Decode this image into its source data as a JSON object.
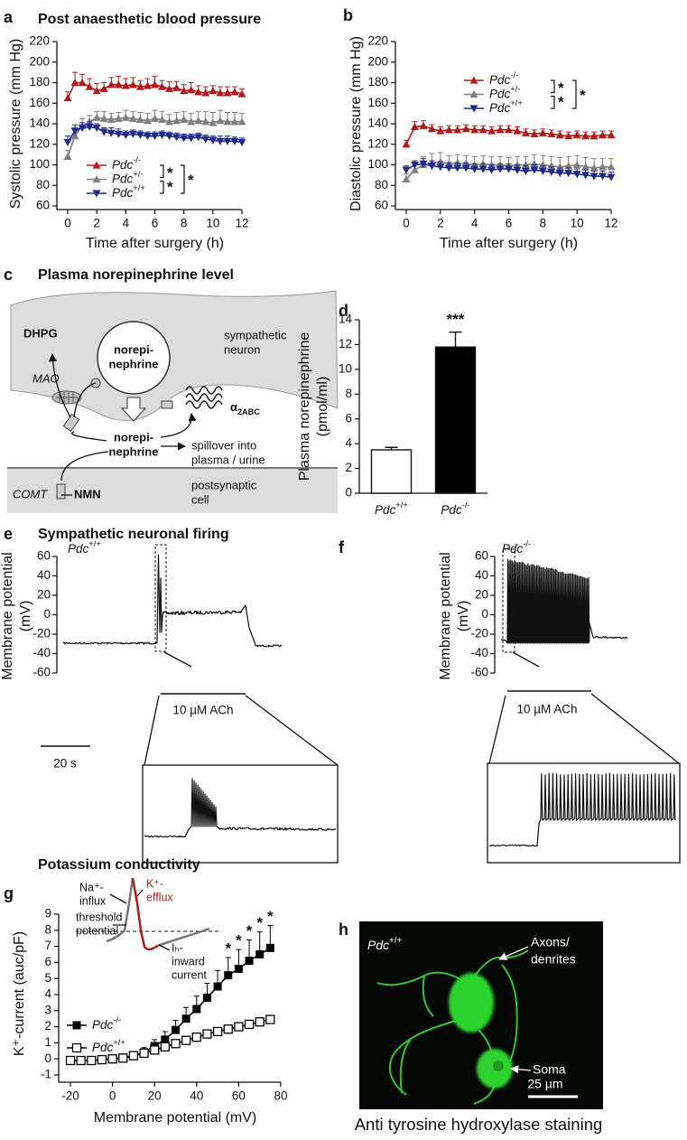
{
  "panel_labels": [
    "a",
    "b",
    "c",
    "d",
    "e",
    "f",
    "g",
    "h"
  ],
  "chart_data": [
    {
      "type": "line",
      "title": "Post anaesthetic blood pressure",
      "xlabel": "Time after surgery (h)",
      "ylabel": "Systolic pressure (mm Hg)",
      "x": [
        0,
        0.5,
        1,
        1.5,
        2,
        2.5,
        3,
        3.5,
        4,
        4.5,
        5,
        5.5,
        6,
        6.5,
        7,
        7.5,
        8,
        8.5,
        9,
        9.5,
        10,
        10.5,
        11,
        11.5,
        12
      ],
      "xlim": [
        0,
        12
      ],
      "xticks": [
        0,
        2,
        4,
        6,
        8,
        10,
        12
      ],
      "ylim": [
        60,
        220
      ],
      "yticks": [
        60,
        80,
        100,
        120,
        140,
        160,
        180,
        200,
        220
      ],
      "series": [
        {
          "name": "Pdc-/-",
          "color": "#b31b1b",
          "marker": "triangle-up",
          "values": [
            165,
            180,
            180,
            176,
            172,
            174,
            178,
            178,
            177,
            178,
            176,
            177,
            178,
            176,
            174,
            175,
            172,
            173,
            171,
            170,
            172,
            170,
            170,
            171,
            169
          ],
          "errors": [
            6,
            10,
            8,
            8,
            7,
            6,
            7,
            8,
            7,
            7,
            6,
            7,
            8,
            6,
            7,
            6,
            6,
            7,
            6,
            6,
            5,
            6,
            6,
            5,
            5
          ]
        },
        {
          "name": "Pdc+/-",
          "color": "#7f7f7f",
          "marker": "triangle-up",
          "values": [
            108,
            128,
            138,
            142,
            146,
            145,
            144,
            145,
            146,
            145,
            144,
            143,
            145,
            144,
            142,
            143,
            144,
            142,
            143,
            142,
            141,
            143,
            142,
            142,
            142
          ],
          "errors": [
            6,
            8,
            7,
            6,
            6,
            7,
            6,
            6,
            7,
            7,
            7,
            7,
            8,
            8,
            7,
            8,
            8,
            8,
            9,
            10,
            10,
            10,
            9,
            9,
            8
          ]
        },
        {
          "name": "Pdc+/+",
          "color": "#1f2a8c",
          "marker": "triangle-down",
          "values": [
            122,
            133,
            136,
            137,
            136,
            132,
            131,
            130,
            129,
            130,
            129,
            128,
            128,
            129,
            128,
            127,
            126,
            126,
            127,
            125,
            124,
            123,
            123,
            123,
            122
          ],
          "errors": [
            6,
            6,
            5,
            5,
            4,
            4,
            5,
            5,
            4,
            4,
            4,
            4,
            4,
            4,
            4,
            4,
            4,
            4,
            4,
            4,
            4,
            5,
            5,
            4,
            4
          ]
        }
      ],
      "significance": [
        "*",
        "*",
        "*"
      ]
    },
    {
      "type": "line",
      "xlabel": "Time after surgery (h)",
      "ylabel": "Diastolic pressure (mm Hg)",
      "x": [
        0,
        0.5,
        1,
        1.5,
        2,
        2.5,
        3,
        3.5,
        4,
        4.5,
        5,
        5.5,
        6,
        6.5,
        7,
        7.5,
        8,
        8.5,
        9,
        9.5,
        10,
        10.5,
        11,
        11.5,
        12
      ],
      "xlim": [
        0,
        12
      ],
      "xticks": [
        0,
        2,
        4,
        6,
        8,
        10,
        12
      ],
      "ylim": [
        60,
        220
      ],
      "yticks": [
        60,
        80,
        100,
        120,
        140,
        160,
        180,
        200,
        220
      ],
      "series": [
        {
          "name": "Pdc-/-",
          "color": "#b31b1b",
          "marker": "triangle-up",
          "values": [
            120,
            137,
            138,
            135,
            133,
            134,
            134,
            135,
            134,
            134,
            133,
            134,
            134,
            133,
            131,
            130,
            131,
            130,
            129,
            128,
            129,
            128,
            128,
            129,
            129
          ],
          "errors": [
            4,
            5,
            5,
            4,
            4,
            4,
            4,
            4,
            4,
            4,
            4,
            4,
            4,
            4,
            4,
            4,
            4,
            4,
            4,
            4,
            4,
            4,
            4,
            4,
            4
          ]
        },
        {
          "name": "Pdc+/-",
          "color": "#7f7f7f",
          "marker": "triangle-up",
          "values": [
            86,
            95,
            100,
            102,
            103,
            101,
            102,
            101,
            100,
            101,
            100,
            100,
            99,
            100,
            100,
            101,
            100,
            99,
            98,
            99,
            100,
            98,
            97,
            98,
            98
          ],
          "errors": [
            5,
            7,
            8,
            9,
            9,
            8,
            8,
            8,
            8,
            8,
            8,
            8,
            8,
            8,
            8,
            9,
            9,
            9,
            9,
            9,
            9,
            9,
            9,
            8,
            8
          ]
        },
        {
          "name": "Pdc+/+",
          "color": "#1f2a8c",
          "marker": "triangle-down",
          "values": [
            95,
            100,
            101,
            99,
            98,
            97,
            97,
            97,
            96,
            96,
            95,
            96,
            96,
            95,
            94,
            95,
            94,
            93,
            92,
            92,
            91,
            90,
            89,
            89,
            88
          ],
          "errors": [
            4,
            4,
            5,
            5,
            5,
            5,
            5,
            5,
            5,
            5,
            5,
            5,
            5,
            5,
            5,
            5,
            5,
            5,
            5,
            5,
            5,
            5,
            5,
            5,
            5
          ]
        }
      ],
      "significance": [
        "*",
        "*",
        "*"
      ]
    },
    {
      "type": "bar",
      "ylabel": [
        "Plasma norepinephrine",
        "(pmol/ml)"
      ],
      "categories": [
        "Pdc+/+",
        "Pdc-/-"
      ],
      "values": [
        3.5,
        11.8
      ],
      "errors": [
        0.2,
        1.2
      ],
      "colors": [
        "#ffffff",
        "#000000"
      ],
      "ylim": [
        0,
        14
      ],
      "yticks": [
        0,
        2,
        4,
        6,
        8,
        10,
        12,
        14
      ],
      "significance": "***"
    },
    {
      "type": "line",
      "title": "Potassium conductivity",
      "xlabel": "Membrane potential (mV)",
      "ylabel": "K⁺-current (auc/pF)",
      "x": [
        -20,
        -15,
        -10,
        -5,
        0,
        5,
        10,
        15,
        20,
        25,
        30,
        35,
        40,
        45,
        50,
        55,
        60,
        65,
        70,
        75
      ],
      "xlim": [
        -20,
        80
      ],
      "xticks": [
        -20,
        0,
        20,
        40,
        60,
        80
      ],
      "ylim": [
        -1,
        9
      ],
      "yticks": [
        -1,
        0,
        1,
        2,
        3,
        4,
        5,
        6,
        7,
        8,
        9
      ],
      "series": [
        {
          "name": "Pdc-/-",
          "color": "#000000",
          "marker": "square-filled",
          "values": [
            -0.1,
            -0.1,
            -0.1,
            -0.05,
            0,
            0.05,
            0.2,
            0.4,
            0.8,
            1.2,
            1.8,
            2.5,
            3.1,
            3.8,
            4.5,
            5.2,
            5.6,
            6.1,
            6.5,
            6.9
          ],
          "errors": [
            0.1,
            0.1,
            0.1,
            0.1,
            0.1,
            0.1,
            0.2,
            0.3,
            0.4,
            0.5,
            0.6,
            0.7,
            0.8,
            0.9,
            1.0,
            1.1,
            1.2,
            1.3,
            1.4,
            1.4
          ]
        },
        {
          "name": "Pdc+/+",
          "color": "#000000",
          "marker": "square-open",
          "values": [
            -0.1,
            -0.1,
            -0.1,
            -0.05,
            0,
            0.05,
            0.2,
            0.35,
            0.55,
            0.75,
            0.95,
            1.15,
            1.35,
            1.55,
            1.7,
            1.85,
            2.0,
            2.15,
            2.3,
            2.45
          ],
          "errors": [
            0.05,
            0.05,
            0.05,
            0.05,
            0.05,
            0.05,
            0.1,
            0.1,
            0.1,
            0.1,
            0.1,
            0.1,
            0.15,
            0.15,
            0.15,
            0.15,
            0.15,
            0.2,
            0.2,
            0.2
          ]
        }
      ],
      "annotations": [
        {
          "x": 55,
          "text": "*"
        },
        {
          "x": 60,
          "text": "*"
        },
        {
          "x": 65,
          "text": "*"
        },
        {
          "x": 70,
          "text": "*"
        },
        {
          "x": 75,
          "text": "*"
        }
      ],
      "inset": {
        "influx": [
          "Na⁺-",
          "influx"
        ],
        "efflux": [
          "K⁺-",
          "efflux"
        ],
        "threshold": [
          "threshold",
          "potential"
        ],
        "inward": [
          "Iₕ-",
          "inward",
          "current"
        ]
      }
    }
  ],
  "diagram": {
    "title": "Plasma norepinephrine level",
    "dhpg": "DHPG",
    "mao": "MAO",
    "vesicle": [
      "norepi-",
      "nephrine"
    ],
    "neuron": [
      "sympathetic",
      "neuron"
    ],
    "receptor": "α2ABC",
    "released": [
      "norepi-",
      "nephrine"
    ],
    "spillover": [
      "spillover into",
      "plasma / urine"
    ],
    "comt": "COMT",
    "nmn": "NMN",
    "postsynaptic": [
      "postsynaptic",
      "cell"
    ]
  },
  "traces": {
    "title": "Sympathetic neuronal firing",
    "ylabel": [
      "Membrane potential",
      "(mV)"
    ],
    "yticks": [
      60,
      40,
      20,
      0,
      -20,
      -40,
      -60
    ],
    "ylim": [
      -60,
      60
    ],
    "left": {
      "genotype": "Pdc+/+",
      "stimulus": "10 µM ACh"
    },
    "right": {
      "genotype": "Pdc-/-",
      "stimulus": "10 µM ACh"
    },
    "scale": "20 s"
  },
  "image": {
    "genotype": "Pdc+/+",
    "axons": [
      "Axons/",
      "denrites"
    ],
    "soma": "Soma",
    "scale": "25 µm",
    "caption": "Anti tyrosine hydroxylase staining"
  }
}
